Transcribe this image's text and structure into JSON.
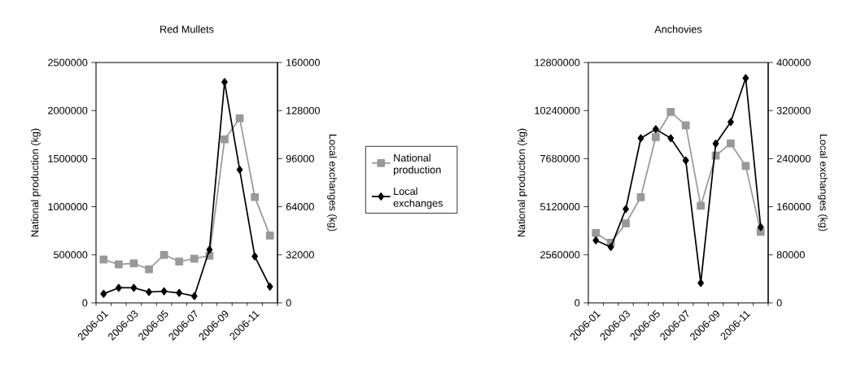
{
  "chart_data": [
    {
      "type": "line",
      "title": "Red Mullets",
      "xlabel": null,
      "ylabel": "National production (kg)",
      "y2label": "Local exchanges (kg)",
      "categories": [
        "2006-01",
        null,
        "2006-03",
        null,
        "2006-05",
        null,
        "2006-07",
        null,
        "2006-09",
        null,
        "2006-11",
        null
      ],
      "series": [
        {
          "name": "National production",
          "color": "#999999",
          "marker": "square",
          "axis": "y",
          "values": [
            450000,
            400000,
            410000,
            350000,
            500000,
            430000,
            460000,
            490000,
            1700000,
            1920000,
            1100000,
            700000
          ]
        },
        {
          "name": "Local exchanges",
          "color": "#000000",
          "marker": "diamond",
          "axis": "y2",
          "values": [
            6000,
            10000,
            10000,
            7200,
            7700,
            6600,
            4500,
            35400,
            147000,
            88600,
            30900,
            10800
          ]
        }
      ],
      "ylim": [
        0,
        2500000
      ],
      "yticks": [
        0,
        500000,
        1000000,
        1500000,
        2000000,
        2500000
      ],
      "y2lim": [
        0,
        160000
      ],
      "y2ticks": [
        0,
        32000,
        64000,
        96000,
        128000,
        160000
      ],
      "legend": "right"
    },
    {
      "type": "line",
      "title": "Anchovies",
      "ylabel": "National production (kg)",
      "y2label": "Local exchanges (kg)",
      "categories": [
        "2006-01",
        null,
        "2006-03",
        null,
        "2006-05",
        null,
        "2006-07",
        null,
        "2006-09",
        null,
        "2006-11",
        null
      ],
      "series": [
        {
          "color": "#999999",
          "marker": "square",
          "axis": "y",
          "values": [
            3720000,
            3200000,
            4230000,
            5630000,
            8830000,
            10170000,
            9450000,
            5170000,
            7840000,
            8490000,
            7290000,
            3780000
          ]
        },
        {
          "color": "#000000",
          "marker": "diamond",
          "axis": "y2",
          "values": [
            104000,
            93000,
            156000,
            274000,
            289000,
            274000,
            237000,
            33000,
            265000,
            301000,
            374000,
            126000
          ]
        }
      ],
      "ylim": [
        0,
        12800000
      ],
      "yticks": [
        0,
        2560000,
        5120000,
        7680000,
        10240000,
        12800000
      ],
      "y2lim": [
        0,
        400000
      ],
      "y2ticks": [
        0,
        80000,
        160000,
        240000,
        320000,
        400000
      ]
    }
  ]
}
